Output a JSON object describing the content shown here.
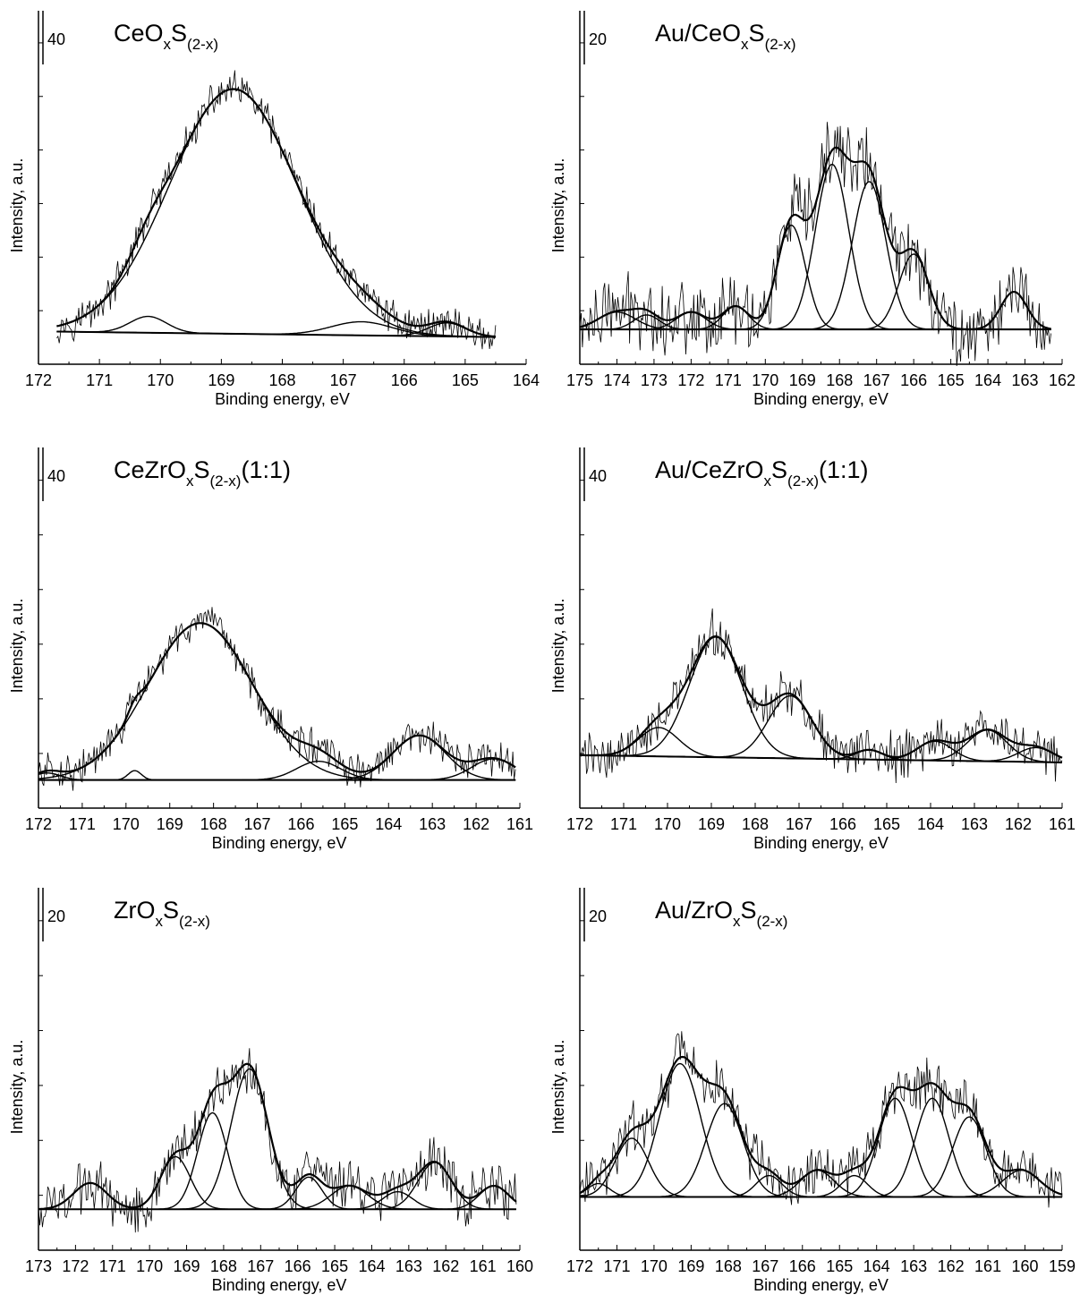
{
  "figure": {
    "ylabel": "Intensity, a.u.",
    "xlabel": "Binding energy, eV"
  },
  "chart_data": [
    {
      "type": "line",
      "title": "CeO",
      "title_parts": [
        {
          "t": "CeO"
        },
        {
          "t": "x",
          "sub": true
        },
        {
          "t": "S"
        },
        {
          "t": "(2-x)",
          "sub": true
        }
      ],
      "scale_bar": "40",
      "xlabel": "Binding energy, eV",
      "ylabel": "Intensity, a.u.",
      "xlim": [
        172,
        164
      ],
      "ylim": [
        -12,
        118
      ],
      "xticks": [
        172,
        171,
        170,
        169,
        168,
        167,
        166,
        165,
        164
      ],
      "x_range": [
        171.7,
        164.5
      ],
      "baseline": [
        0,
        -2
      ],
      "noise": 5,
      "components": [
        {
          "c": 168.8,
          "a": 90,
          "s": 1.05
        },
        {
          "c": 170.2,
          "a": 6,
          "s": 0.3
        },
        {
          "c": 166.7,
          "a": 5,
          "s": 0.5
        },
        {
          "c": 165.3,
          "a": 5,
          "s": 0.3
        }
      ],
      "grid": false
    },
    {
      "type": "line",
      "title": "Au/CeO",
      "title_parts": [
        {
          "t": "Au/CeO"
        },
        {
          "t": "x",
          "sub": true
        },
        {
          "t": "S"
        },
        {
          "t": "(2-x)",
          "sub": true
        }
      ],
      "scale_bar": "20",
      "xlabel": "Binding energy, eV",
      "ylabel": "Intensity, a.u.",
      "xlim": [
        175,
        162
      ],
      "ylim": [
        -12,
        110
      ],
      "xticks": [
        175,
        174,
        173,
        172,
        171,
        170,
        169,
        168,
        167,
        166,
        165,
        164,
        163,
        162
      ],
      "x_range": [
        175,
        162.3
      ],
      "baseline": [
        0,
        0
      ],
      "noise": 10,
      "components": [
        {
          "c": 174.0,
          "a": 6,
          "s": 0.5
        },
        {
          "c": 173.2,
          "a": 5,
          "s": 0.35
        },
        {
          "c": 172.0,
          "a": 6,
          "s": 0.4
        },
        {
          "c": 170.8,
          "a": 8,
          "s": 0.35
        },
        {
          "c": 169.3,
          "a": 36,
          "s": 0.38
        },
        {
          "c": 168.2,
          "a": 57,
          "s": 0.45
        },
        {
          "c": 167.2,
          "a": 51,
          "s": 0.45
        },
        {
          "c": 166.0,
          "a": 26,
          "s": 0.4
        },
        {
          "c": 163.3,
          "a": 13,
          "s": 0.35
        }
      ],
      "grid": false
    },
    {
      "type": "line",
      "title": "CeZrO",
      "title_parts": [
        {
          "t": "CeZrO"
        },
        {
          "t": "x",
          "sub": true
        },
        {
          "t": "S"
        },
        {
          "t": "(2-x)",
          "sub": true
        },
        {
          "t": "(1:1)"
        }
      ],
      "scale_bar": "40",
      "xlabel": "Binding energy, eV",
      "ylabel": "Intensity, a.u.",
      "xlim": [
        172,
        161
      ],
      "ylim": [
        -12,
        142
      ],
      "xticks": [
        172,
        171,
        170,
        169,
        168,
        167,
        166,
        165,
        164,
        163,
        162,
        161
      ],
      "x_range": [
        172,
        161.1
      ],
      "baseline": [
        0,
        0
      ],
      "noise": 6,
      "components": [
        {
          "c": 171.8,
          "a": 3,
          "s": 0.3
        },
        {
          "c": 169.8,
          "a": 4,
          "s": 0.15
        },
        {
          "c": 168.3,
          "a": 67,
          "s": 1.2
        },
        {
          "c": 165.6,
          "a": 8,
          "s": 0.5
        },
        {
          "c": 163.3,
          "a": 19,
          "s": 0.6
        },
        {
          "c": 161.6,
          "a": 9,
          "s": 0.5
        }
      ],
      "grid": false
    },
    {
      "type": "line",
      "title": "Au/CeZrO",
      "title_parts": [
        {
          "t": "Au/CeZrO"
        },
        {
          "t": "x",
          "sub": true
        },
        {
          "t": "S"
        },
        {
          "t": "(2-x)",
          "sub": true
        },
        {
          "t": "(1:1)"
        }
      ],
      "scale_bar": "40",
      "xlabel": "Binding energy, eV",
      "ylabel": "Intensity, a.u.",
      "xlim": [
        172,
        161
      ],
      "ylim": [
        -22,
        128
      ],
      "xticks": [
        172,
        171,
        170,
        169,
        168,
        167,
        166,
        165,
        164,
        163,
        162,
        161
      ],
      "x_range": [
        172,
        161
      ],
      "baseline": [
        0,
        -3
      ],
      "noise": 8,
      "components": [
        {
          "c": 170.2,
          "a": 12,
          "s": 0.45
        },
        {
          "c": 168.9,
          "a": 50,
          "s": 0.6
        },
        {
          "c": 167.2,
          "a": 26,
          "s": 0.5
        },
        {
          "c": 165.4,
          "a": 4,
          "s": 0.3
        },
        {
          "c": 163.9,
          "a": 8,
          "s": 0.4
        },
        {
          "c": 162.7,
          "a": 13,
          "s": 0.45
        },
        {
          "c": 161.6,
          "a": 6,
          "s": 0.4
        }
      ],
      "grid": false
    },
    {
      "type": "line",
      "title": "ZrO",
      "title_parts": [
        {
          "t": "ZrO"
        },
        {
          "t": "x",
          "sub": true
        },
        {
          "t": "S"
        },
        {
          "t": "(2-x)",
          "sub": true
        }
      ],
      "scale_bar": "20",
      "xlabel": "Binding energy, eV",
      "ylabel": "Intensity, a.u.",
      "xlim": [
        173,
        160
      ],
      "ylim": [
        -14,
        110
      ],
      "xticks": [
        173,
        172,
        171,
        170,
        169,
        168,
        167,
        166,
        165,
        164,
        163,
        162,
        161,
        160
      ],
      "x_range": [
        173,
        160.1
      ],
      "baseline": [
        0,
        0
      ],
      "noise": 7,
      "components": [
        {
          "c": 171.6,
          "a": 9,
          "s": 0.45
        },
        {
          "c": 169.3,
          "a": 18,
          "s": 0.4
        },
        {
          "c": 168.3,
          "a": 33,
          "s": 0.4
        },
        {
          "c": 167.3,
          "a": 48,
          "s": 0.5
        },
        {
          "c": 165.7,
          "a": 11,
          "s": 0.35
        },
        {
          "c": 164.6,
          "a": 8,
          "s": 0.5
        },
        {
          "c": 163.3,
          "a": 6,
          "s": 0.4
        },
        {
          "c": 162.3,
          "a": 16,
          "s": 0.45
        },
        {
          "c": 160.7,
          "a": 8,
          "s": 0.4
        }
      ],
      "grid": false
    },
    {
      "type": "line",
      "title": "Au/ZrO",
      "title_parts": [
        {
          "t": "Au/ZrO"
        },
        {
          "t": "x",
          "sub": true
        },
        {
          "t": "S"
        },
        {
          "t": "(2-x)",
          "sub": true
        }
      ],
      "scale_bar": "20",
      "xlabel": "Binding energy, eV",
      "ylabel": "Intensity, a.u.",
      "xlim": [
        172,
        159
      ],
      "ylim": [
        -20,
        116
      ],
      "xticks": [
        172,
        171,
        170,
        169,
        168,
        167,
        166,
        165,
        164,
        163,
        162,
        161,
        160,
        159
      ],
      "x_range": [
        172,
        159
      ],
      "baseline": [
        0,
        0
      ],
      "noise": 8,
      "components": [
        {
          "c": 171.5,
          "a": 5,
          "s": 0.3
        },
        {
          "c": 170.6,
          "a": 22,
          "s": 0.45
        },
        {
          "c": 169.3,
          "a": 50,
          "s": 0.55
        },
        {
          "c": 168.1,
          "a": 35,
          "s": 0.5
        },
        {
          "c": 166.9,
          "a": 8,
          "s": 0.35
        },
        {
          "c": 165.6,
          "a": 10,
          "s": 0.45
        },
        {
          "c": 164.6,
          "a": 8,
          "s": 0.35
        },
        {
          "c": 163.5,
          "a": 37,
          "s": 0.45
        },
        {
          "c": 162.5,
          "a": 37,
          "s": 0.45
        },
        {
          "c": 161.5,
          "a": 30,
          "s": 0.45
        },
        {
          "c": 160.1,
          "a": 10,
          "s": 0.5
        }
      ],
      "grid": false
    }
  ]
}
